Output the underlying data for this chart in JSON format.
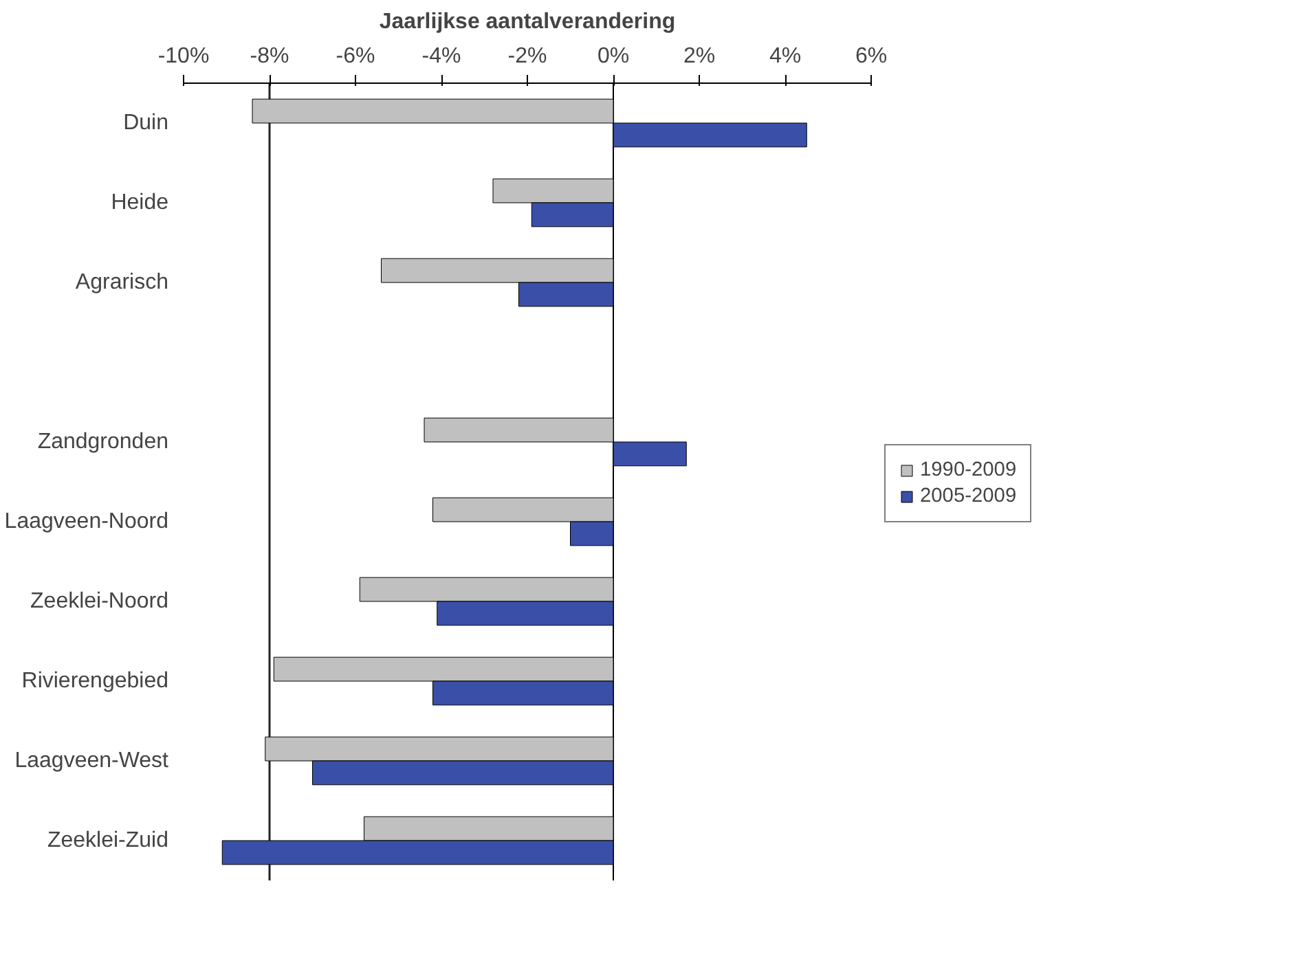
{
  "chart_data": {
    "type": "bar",
    "orientation": "horizontal",
    "title": "Jaarlijkse aantalverandering",
    "categories": [
      "Duin",
      "Heide",
      "Agrarisch",
      null,
      "Zandgronden",
      "Laagveen-Noord",
      "Zeeklei-Noord",
      "Rivierengebied",
      "Laagveen-West",
      "Zeeklei-Zuid"
    ],
    "series": [
      {
        "name": "1990-2009",
        "color": "#c0c0c0",
        "values": [
          -8.4,
          -2.8,
          -5.4,
          null,
          -4.4,
          -4.2,
          -5.9,
          -7.9,
          -8.1,
          -5.8
        ]
      },
      {
        "name": "2005-2009",
        "color": "#3a4fa8",
        "values": [
          4.5,
          -1.9,
          -2.2,
          null,
          1.7,
          -1.0,
          -4.1,
          -4.2,
          -7.0,
          -9.1
        ]
      }
    ],
    "xlim": [
      -10,
      6
    ],
    "xticks": [
      {
        "value": -10,
        "label": "-10%"
      },
      {
        "value": -8,
        "label": "-8%"
      },
      {
        "value": -6,
        "label": "-6%"
      },
      {
        "value": -4,
        "label": "-4%"
      },
      {
        "value": -2,
        "label": "-2%"
      },
      {
        "value": 0,
        "label": "0%"
      },
      {
        "value": 2,
        "label": "2%"
      },
      {
        "value": 4,
        "label": "4%"
      },
      {
        "value": 6,
        "label": "6%"
      }
    ],
    "ref_lines": [
      {
        "axis": "x",
        "value": -8,
        "label": null,
        "color": "#222222"
      }
    ],
    "grid": false,
    "legend": "right"
  }
}
